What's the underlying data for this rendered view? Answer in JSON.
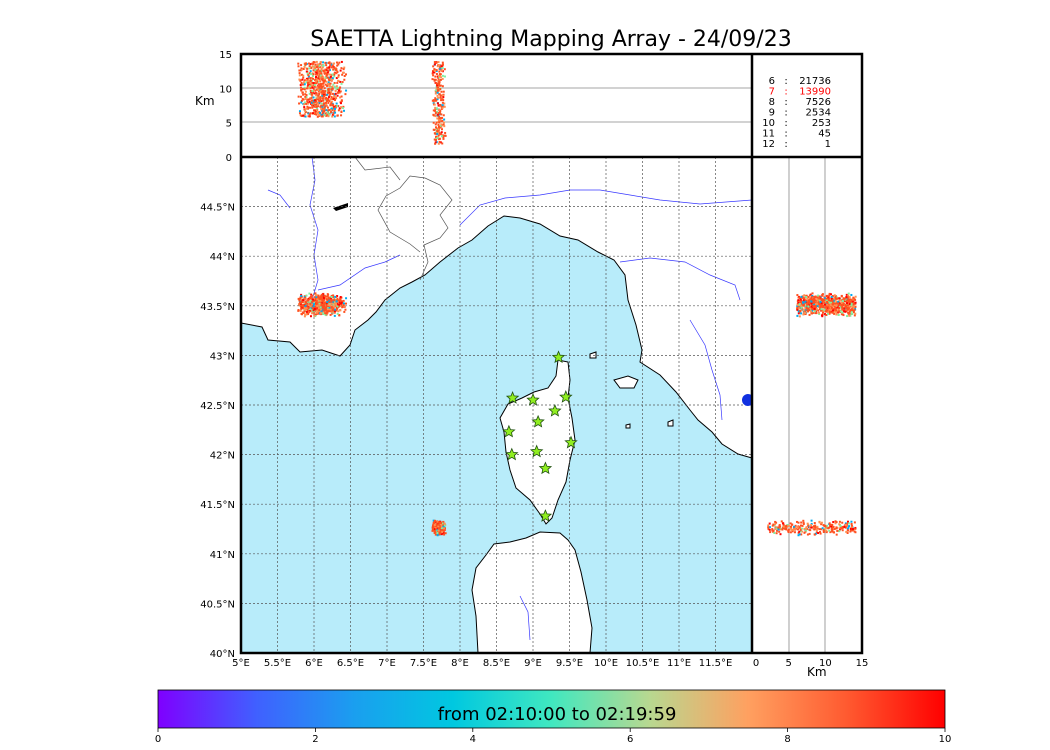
{
  "title": "SAETTA Lightning Mapping Array - 24/09/23",
  "map": {
    "lon_ticks": [
      "5°E",
      "5.5°E",
      "6°E",
      "6.5°E",
      "7°E",
      "7.5°E",
      "8°E",
      "8.5°E",
      "9°E",
      "9.5°E",
      "10°E",
      "10.5°E",
      "11°E",
      "11.5°E"
    ],
    "lon_values": [
      5,
      5.5,
      6,
      6.5,
      7,
      7.5,
      8,
      8.5,
      9,
      9.5,
      10,
      10.5,
      11,
      11.5
    ],
    "lat_ticks": [
      "44.5°N",
      "44°N",
      "43.5°N",
      "43°N",
      "42.5°N",
      "42°N",
      "41.5°N",
      "41°N",
      "40.5°N",
      "40°N"
    ],
    "lat_values": [
      44.5,
      44,
      43.5,
      43,
      42.5,
      42,
      41.5,
      41,
      40.5,
      40
    ],
    "lon_range": [
      5,
      12
    ],
    "lat_range": [
      40,
      45
    ],
    "sea_color": "#b8ecfa",
    "land_color": "#ffffff"
  },
  "altitude_panel": {
    "unit_label": "Km",
    "ticks": [
      "15",
      "10",
      "5",
      "0"
    ],
    "tick_values": [
      15,
      10,
      5,
      0
    ]
  },
  "side_panel": {
    "unit_label": "Km",
    "ticks": [
      "0",
      "5",
      "10",
      "15"
    ],
    "tick_values": [
      0,
      5,
      10,
      15
    ]
  },
  "station_counts": [
    {
      "station": "6",
      "sep": ":",
      "count": "21736",
      "color": "#000000"
    },
    {
      "station": "7",
      "sep": ":",
      "count": "13990",
      "color": "#ff0000"
    },
    {
      "station": "8",
      "sep": ":",
      "count": "7526",
      "color": "#000000"
    },
    {
      "station": "9",
      "sep": ":",
      "count": "2534",
      "color": "#000000"
    },
    {
      "station": "10",
      "sep": ":",
      "count": "253",
      "color": "#000000"
    },
    {
      "station": "11",
      "sep": ":",
      "count": "45",
      "color": "#000000"
    },
    {
      "station": "12",
      "sep": ":",
      "count": "1",
      "color": "#000000"
    }
  ],
  "stations": [
    {
      "lon": 9.35,
      "lat": 42.98
    },
    {
      "lon": 8.72,
      "lat": 42.57
    },
    {
      "lon": 9.0,
      "lat": 42.55
    },
    {
      "lon": 9.45,
      "lat": 42.58
    },
    {
      "lon": 9.3,
      "lat": 42.44
    },
    {
      "lon": 9.07,
      "lat": 42.33
    },
    {
      "lon": 8.67,
      "lat": 42.23
    },
    {
      "lon": 9.52,
      "lat": 42.12
    },
    {
      "lon": 9.05,
      "lat": 42.03
    },
    {
      "lon": 8.71,
      "lat": 42.0
    },
    {
      "lon": 9.17,
      "lat": 41.86
    },
    {
      "lon": 9.17,
      "lat": 41.38
    }
  ],
  "lightning_clusters": [
    {
      "lon": 6.1,
      "lat": 43.52,
      "spread_lon": 0.35,
      "spread_lat": 0.12,
      "alt_min": 6,
      "alt_max": 14
    },
    {
      "lon": 7.7,
      "lat": 41.27,
      "spread_lon": 0.1,
      "spread_lat": 0.08,
      "alt_min": 2,
      "alt_max": 14
    }
  ],
  "colorbar": {
    "label": "from 02:10:00 to 02:19:59",
    "ticks": [
      "0",
      "2",
      "4",
      "6",
      "8",
      "10"
    ],
    "tick_values": [
      0,
      2,
      4,
      6,
      8,
      10
    ],
    "colors": [
      "#7f00ff",
      "#4060ff",
      "#00aaee",
      "#20dcd0",
      "#80f0a0",
      "#e0c070",
      "#ff9050",
      "#ff5020",
      "#ff0000"
    ]
  }
}
